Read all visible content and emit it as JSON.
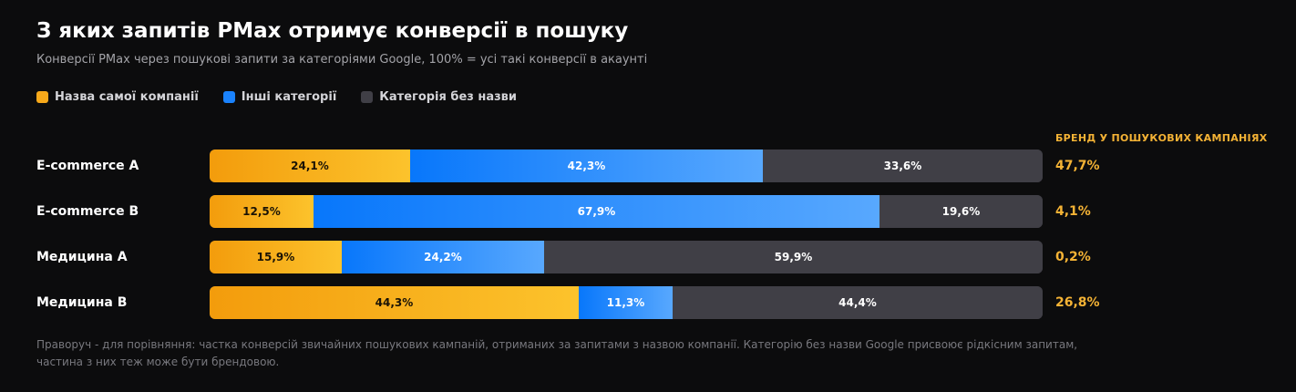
{
  "chart_data": {
    "type": "bar",
    "stacked": true,
    "orientation": "horizontal",
    "title": "З яких запитів PMax отримує конверсії в пошуку",
    "subtitle": "Конверсії PMax через пошукові запити за категоріями Google, 100% = усі такі конверсії в акаунті",
    "categories": [
      "E-commerce A",
      "E-commerce B",
      "Медицина А",
      "Медицина В"
    ],
    "series": [
      {
        "name": "Назва самої компанії",
        "color": "#f7a91a",
        "values": [
          24.1,
          12.5,
          15.9,
          44.3
        ],
        "labels": [
          "24,1%",
          "12,5%",
          "15,9%",
          "44,3%"
        ]
      },
      {
        "name": "Інші категорії",
        "color": "#1a82fc",
        "values": [
          42.3,
          67.9,
          24.2,
          11.3
        ],
        "labels": [
          "42,3%",
          "67,9%",
          "24,2%",
          "11,3%"
        ]
      },
      {
        "name": "Категорія без назви",
        "color": "#403f46",
        "values": [
          33.6,
          19.6,
          59.9,
          44.4
        ],
        "labels": [
          "33,6%",
          "19,6%",
          "59,9%",
          "44,4%"
        ]
      }
    ],
    "xlim": [
      0,
      100
    ],
    "legend_position": "top-left",
    "grid": false,
    "side_column": {
      "header": "БРЕНД У ПОШУКОВИХ КАМПАНІЯХ",
      "values": [
        47.7,
        4.1,
        0.2,
        26.8
      ],
      "labels": [
        "47,7%",
        "4,1%",
        "0,2%",
        "26,8%"
      ]
    },
    "footnote": "Праворуч - для порівняння: частка конверсій звичайних пошукових кампаній, отриманих за запитами з назвою компанії. Категорію без назви Google присвоює рідкісним запитам, частина з них теж може бути брендовою."
  }
}
